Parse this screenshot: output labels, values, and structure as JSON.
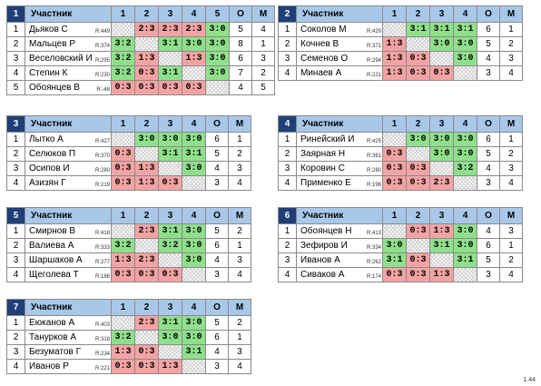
{
  "groups": [
    {
      "num": "1",
      "header": {
        "name": "Участник",
        "cols": [
          "1",
          "2",
          "3",
          "4",
          "5"
        ],
        "o": "О",
        "m": "М"
      },
      "rows": [
        {
          "idx": "1",
          "name": "Дьяков С",
          "rating": "R:449",
          "scores": [
            "",
            "2:3",
            "2:3",
            "2:3",
            "3:0"
          ],
          "o": "5",
          "m": "4"
        },
        {
          "idx": "2",
          "name": "Мальцев Р",
          "rating": "R:374",
          "scores": [
            "3:2",
            "",
            "3:1",
            "3:0",
            "3:0"
          ],
          "o": "8",
          "m": "1"
        },
        {
          "idx": "3",
          "name": "Веселовский И",
          "rating": "R:295",
          "scores": [
            "3:2",
            "1:3",
            "",
            "1:3",
            "3:0"
          ],
          "o": "6",
          "m": "3"
        },
        {
          "idx": "4",
          "name": "Степин К",
          "rating": "R:230",
          "scores": [
            "3:2",
            "0:3",
            "3:1",
            "",
            "3:0"
          ],
          "o": "7",
          "m": "2"
        },
        {
          "idx": "5",
          "name": "Обоянцев В",
          "rating": "R:-48",
          "scores": [
            "0:3",
            "0:3",
            "0:3",
            "0:3",
            ""
          ],
          "o": "4",
          "m": "5"
        }
      ]
    },
    {
      "num": "2",
      "header": {
        "name": "Участник",
        "cols": [
          "1",
          "2",
          "3",
          "4"
        ],
        "o": "О",
        "m": "М"
      },
      "rows": [
        {
          "idx": "1",
          "name": "Соколов М",
          "rating": "R:429",
          "scores": [
            "",
            "3:1",
            "3:1",
            "3:1"
          ],
          "o": "6",
          "m": "1"
        },
        {
          "idx": "2",
          "name": "Кочнев В",
          "rating": "R:371",
          "scores": [
            "1:3",
            "",
            "3:0",
            "3:0"
          ],
          "o": "5",
          "m": "2"
        },
        {
          "idx": "3",
          "name": "Семенов О",
          "rating": "R:294",
          "scores": [
            "1:3",
            "0:3",
            "",
            "3:0"
          ],
          "o": "4",
          "m": "3"
        },
        {
          "idx": "4",
          "name": "Минаев А",
          "rating": "R:221",
          "scores": [
            "1:3",
            "0:3",
            "0:3",
            ""
          ],
          "o": "3",
          "m": "4"
        }
      ]
    },
    {
      "num": "3",
      "header": {
        "name": "Участник",
        "cols": [
          "1",
          "2",
          "3",
          "4"
        ],
        "o": "О",
        "m": "М"
      },
      "rows": [
        {
          "idx": "1",
          "name": "Лытко А",
          "rating": "R:427",
          "scores": [
            "",
            "3:0",
            "3:0",
            "3:0"
          ],
          "o": "6",
          "m": "1"
        },
        {
          "idx": "2",
          "name": "Селюков П",
          "rating": "R:370",
          "scores": [
            "0:3",
            "",
            "3:1",
            "3:1"
          ],
          "o": "5",
          "m": "2"
        },
        {
          "idx": "3",
          "name": "Осипов И",
          "rating": "R:280",
          "scores": [
            "0:3",
            "1:3",
            "",
            "3:0"
          ],
          "o": "4",
          "m": "3"
        },
        {
          "idx": "4",
          "name": "Азизян Г",
          "rating": "R:219",
          "scores": [
            "0:3",
            "1:3",
            "0:3",
            ""
          ],
          "o": "3",
          "m": "4"
        }
      ]
    },
    {
      "num": "4",
      "header": {
        "name": "Участник",
        "cols": [
          "1",
          "2",
          "3",
          "4"
        ],
        "o": "О",
        "m": "М"
      },
      "rows": [
        {
          "idx": "1",
          "name": "Ринейский И",
          "rating": "R:425",
          "scores": [
            "",
            "3:0",
            "3:0",
            "3:0"
          ],
          "o": "6",
          "m": "1"
        },
        {
          "idx": "2",
          "name": "Заярная Н",
          "rating": "R:361",
          "scores": [
            "0:3",
            "",
            "3:0",
            "3:0"
          ],
          "o": "5",
          "m": "2"
        },
        {
          "idx": "3",
          "name": "Коровин С",
          "rating": "R:280",
          "scores": [
            "0:3",
            "0:3",
            "",
            "3:2"
          ],
          "o": "4",
          "m": "3"
        },
        {
          "idx": "4",
          "name": "Применко Е",
          "rating": "R:196",
          "scores": [
            "0:3",
            "0:3",
            "2:3",
            ""
          ],
          "o": "3",
          "m": "4"
        }
      ]
    },
    {
      "num": "5",
      "header": {
        "name": "Участник",
        "cols": [
          "1",
          "2",
          "3",
          "4"
        ],
        "o": "О",
        "m": "М"
      },
      "rows": [
        {
          "idx": "1",
          "name": "Смирнов В",
          "rating": "R:418",
          "scores": [
            "",
            "2:3",
            "3:1",
            "3:0"
          ],
          "o": "5",
          "m": "2"
        },
        {
          "idx": "2",
          "name": "Валиева А",
          "rating": "R:333",
          "scores": [
            "3:2",
            "",
            "3:2",
            "3:0"
          ],
          "o": "6",
          "m": "1"
        },
        {
          "idx": "3",
          "name": "Шаршаков А",
          "rating": "R:277",
          "scores": [
            "1:3",
            "2:3",
            "",
            "3:0"
          ],
          "o": "4",
          "m": "3"
        },
        {
          "idx": "4",
          "name": "Щеголева Т",
          "rating": "R:186",
          "scores": [
            "0:3",
            "0:3",
            "0:3",
            ""
          ],
          "o": "3",
          "m": "4"
        }
      ]
    },
    {
      "num": "6",
      "header": {
        "name": "Участник",
        "cols": [
          "1",
          "2",
          "3",
          "4"
        ],
        "o": "О",
        "m": "М"
      },
      "rows": [
        {
          "idx": "1",
          "name": "Обоянцев Н",
          "rating": "R:413",
          "scores": [
            "",
            "0:3",
            "1:3",
            "3:0"
          ],
          "o": "4",
          "m": "3"
        },
        {
          "idx": "2",
          "name": "Зефиров И",
          "rating": "R:334",
          "scores": [
            "3:0",
            "",
            "3:1",
            "3:0"
          ],
          "o": "6",
          "m": "1"
        },
        {
          "idx": "3",
          "name": "Иванов А",
          "rating": "R:262",
          "scores": [
            "3:1",
            "0:3",
            "",
            "3:1"
          ],
          "o": "5",
          "m": "2"
        },
        {
          "idx": "4",
          "name": "Сиваков А",
          "rating": "R:174",
          "scores": [
            "0:3",
            "0:3",
            "1:3",
            ""
          ],
          "o": "3",
          "m": "4"
        }
      ]
    },
    {
      "num": "7",
      "header": {
        "name": "Участник",
        "cols": [
          "1",
          "2",
          "3",
          "4"
        ],
        "o": "О",
        "m": "М"
      },
      "rows": [
        {
          "idx": "1",
          "name": "Еюканов А",
          "rating": "R:403",
          "scores": [
            "",
            "2:3",
            "3:1",
            "3:0"
          ],
          "o": "5",
          "m": "2"
        },
        {
          "idx": "2",
          "name": "Танурков А",
          "rating": "R:318",
          "scores": [
            "3:2",
            "",
            "3:0",
            "3:0"
          ],
          "o": "6",
          "m": "1"
        },
        {
          "idx": "3",
          "name": "Безуматов Г",
          "rating": "R:234",
          "scores": [
            "1:3",
            "0:3",
            "",
            "3:1"
          ],
          "o": "4",
          "m": "3"
        },
        {
          "idx": "4",
          "name": "Иванов Р",
          "rating": "R:221",
          "scores": [
            "0:3",
            "0:3",
            "1:3",
            ""
          ],
          "o": "3",
          "m": "4"
        }
      ]
    }
  ],
  "colors": {
    "win": "#8fe08b",
    "loss": "#f4a3a3",
    "header": "#a8c8ea",
    "group_num": "#1f3f78"
  },
  "version": "1.44"
}
